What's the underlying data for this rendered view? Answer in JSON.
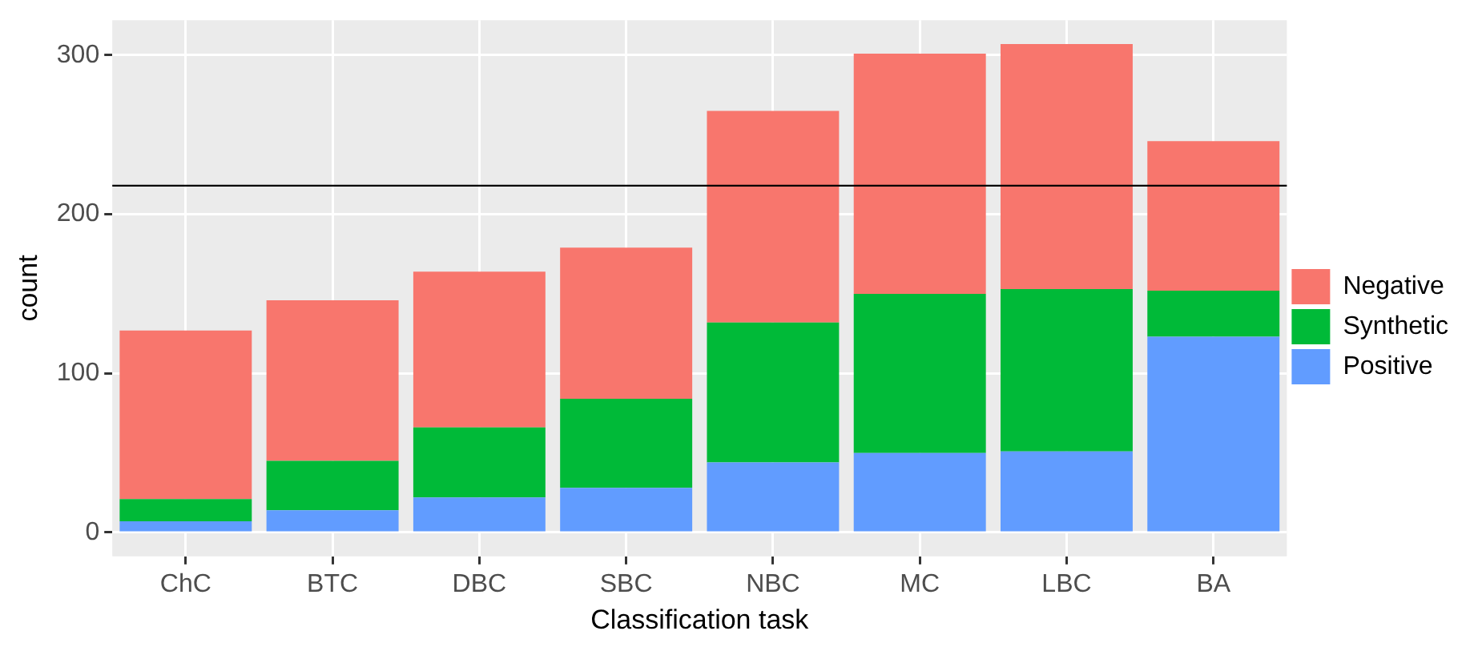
{
  "chart_data": {
    "type": "bar",
    "stacked": true,
    "xlabel": "Classification task",
    "ylabel": "count",
    "categories": [
      "ChC",
      "BTC",
      "DBC",
      "SBC",
      "NBC",
      "MC",
      "LBC",
      "BA"
    ],
    "series": [
      {
        "name": "Positive",
        "color": "#619cff",
        "values": [
          7,
          14,
          22,
          28,
          44,
          50,
          51,
          123
        ]
      },
      {
        "name": "Synthetic",
        "color": "#00ba38",
        "values": [
          14,
          31,
          44,
          56,
          88,
          100,
          102,
          29
        ]
      },
      {
        "name": "Negative",
        "color": "#f8766d",
        "values": [
          106,
          101,
          98,
          95,
          133,
          151,
          154,
          94
        ]
      }
    ],
    "ylim": [
      -15,
      322
    ],
    "yticks": [
      0,
      100,
      200,
      300
    ],
    "grid": true,
    "legend": "right",
    "ref_lines": [
      {
        "axis": "y",
        "value": 218,
        "color": "#000000"
      }
    ]
  }
}
